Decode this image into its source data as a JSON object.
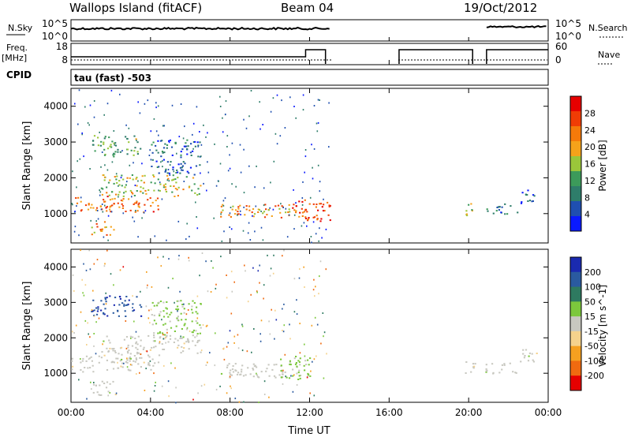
{
  "header": {
    "station": "Wallops Island (fitACF)",
    "beam": "Beam 04",
    "date": "19/Oct/2012"
  },
  "strips": {
    "nsky_label": "N.Sky",
    "nsearch_label": "N.Search",
    "nsky_ticks": [
      "10^5",
      "10^0"
    ],
    "nsearch_ticks": [
      "10^5",
      "10^0"
    ],
    "freq_label_1": "Freq.",
    "freq_label_2": "[MHz]",
    "freq_ticks": [
      "18",
      "8"
    ],
    "nave_label": "Nave",
    "nave_ticks": [
      "60",
      "0"
    ],
    "cpid_label": "CPID",
    "cpid_value": "tau (fast) -503"
  },
  "colors": {
    "power_scale": [
      "#0a1aff",
      "#1f4fb0",
      "#2e7d6a",
      "#3c9a5a",
      "#9ac63a",
      "#f5a21a",
      "#f57a0a",
      "#f03c05",
      "#e60000"
    ],
    "velocity_scale": [
      "#1a2ab0",
      "#2a5aa0",
      "#2e7a60",
      "#7cc83c",
      "#c8c8c0",
      "#f5d28c",
      "#f5a020",
      "#f06a10",
      "#e60000"
    ]
  },
  "chart_data": [
    {
      "type": "heatmap",
      "title": "",
      "xlabel": "Time UT",
      "ylabel": "Slant Range [km]",
      "x_ticks": [
        "00:00",
        "04:00",
        "08:00",
        "12:00",
        "16:00",
        "20:00",
        "00:00"
      ],
      "y_ticks": [
        "1000",
        "2000",
        "3000",
        "4000"
      ],
      "xlim_hours": [
        0,
        24
      ],
      "ylim_km": [
        180,
        4500
      ],
      "colorbar_label": "Power [dB]",
      "colorbar_ticks": [
        "4",
        "8",
        "12",
        "16",
        "20",
        "24",
        "28"
      ],
      "clim": [
        0,
        30
      ],
      "echo_regions": [
        {
          "t_start": 0.0,
          "t_end": 4.5,
          "range_start": 1050,
          "range_end": 1500,
          "level": 22
        },
        {
          "t_start": 1.5,
          "t_end": 6.5,
          "range_start": 1500,
          "range_end": 2100,
          "level": 16
        },
        {
          "t_start": 1.0,
          "t_end": 3.5,
          "range_start": 2600,
          "range_end": 3200,
          "level": 12
        },
        {
          "t_start": 4.0,
          "t_end": 6.5,
          "range_start": 2100,
          "range_end": 3100,
          "level": 6
        },
        {
          "t_start": 7.5,
          "t_end": 12.0,
          "range_start": 900,
          "range_end": 1300,
          "level": 20
        },
        {
          "t_start": 11.0,
          "t_end": 13.0,
          "range_start": 800,
          "range_end": 1400,
          "level": 26
        },
        {
          "t_start": 1.0,
          "t_end": 2.3,
          "range_start": 400,
          "range_end": 800,
          "level": 20
        },
        {
          "t_start": 19.8,
          "t_end": 20.4,
          "range_start": 950,
          "range_end": 1350,
          "level": 16
        },
        {
          "t_start": 20.8,
          "t_end": 22.5,
          "range_start": 1000,
          "range_end": 1300,
          "level": 8
        },
        {
          "t_start": 22.5,
          "t_end": 23.5,
          "range_start": 1300,
          "range_end": 1700,
          "level": 5
        }
      ]
    },
    {
      "type": "heatmap",
      "title": "",
      "xlabel": "Time UT",
      "ylabel": "Slant Range [km]",
      "x_ticks": [
        "00:00",
        "04:00",
        "08:00",
        "12:00",
        "16:00",
        "20:00",
        "00:00"
      ],
      "y_ticks": [
        "1000",
        "2000",
        "3000",
        "4000"
      ],
      "xlim_hours": [
        0,
        24
      ],
      "ylim_km": [
        180,
        4500
      ],
      "colorbar_label": "Velocity [m s^-1]",
      "colorbar_ticks": [
        "200",
        "100",
        "50",
        "15",
        "-15",
        "-50",
        "-100",
        "-200"
      ],
      "clim": [
        -250,
        250
      ],
      "echo_regions": [
        {
          "t_start": 0.0,
          "t_end": 4.5,
          "range_start": 1050,
          "range_end": 1500,
          "level": 0
        },
        {
          "t_start": 1.5,
          "t_end": 6.5,
          "range_start": 1500,
          "range_end": 2100,
          "level": 0
        },
        {
          "t_start": 1.0,
          "t_end": 3.5,
          "range_start": 2600,
          "range_end": 3200,
          "level": 180
        },
        {
          "t_start": 4.0,
          "t_end": 6.5,
          "range_start": 2100,
          "range_end": 3100,
          "level": 40
        },
        {
          "t_start": 7.5,
          "t_end": 12.0,
          "range_start": 900,
          "range_end": 1300,
          "level": 0
        },
        {
          "t_start": 10.5,
          "t_end": 12.0,
          "range_start": 800,
          "range_end": 1500,
          "level": 50
        },
        {
          "t_start": 1.0,
          "t_end": 2.3,
          "range_start": 400,
          "range_end": 800,
          "level": 0
        },
        {
          "t_start": 19.8,
          "t_end": 20.4,
          "range_start": 950,
          "range_end": 1350,
          "level": 0
        },
        {
          "t_start": 20.8,
          "t_end": 22.5,
          "range_start": 1000,
          "range_end": 1300,
          "level": 0
        },
        {
          "t_start": 22.5,
          "t_end": 23.5,
          "range_start": 1300,
          "range_end": 1700,
          "level": 0
        }
      ]
    }
  ]
}
